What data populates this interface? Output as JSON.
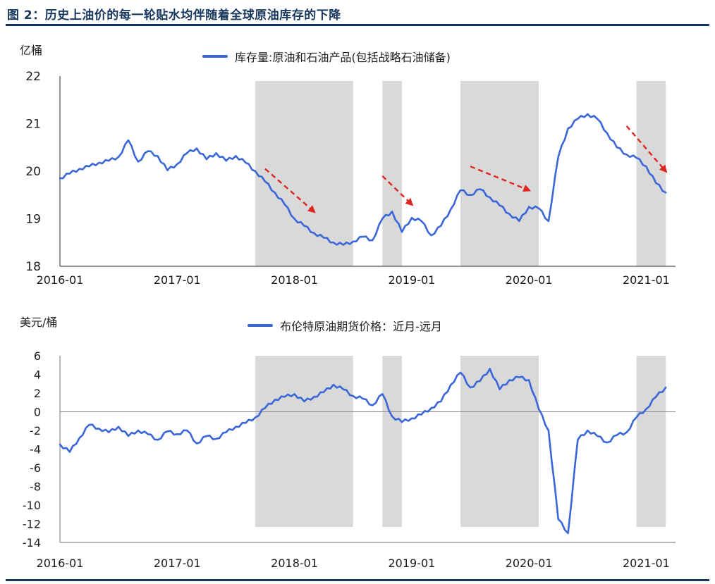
{
  "header": {
    "title": "图 2：历史上油价的每一轮贴水均伴随着全球原油库存的下降"
  },
  "colors": {
    "accent_navy": "#17375e",
    "line_blue": "#3a66d8",
    "band_gray": "#d9d9d9",
    "arrow_red": "#e02420",
    "zero_line_gray": "#8c8c8c",
    "axis_dark": "#4d4d4d"
  },
  "chart_data": [
    {
      "type": "line",
      "unit_label": "亿桶",
      "legend": "库存量:原油和石油产品(包括战略石油储备)",
      "ylim": [
        18,
        22
      ],
      "yticks": [
        18,
        19,
        20,
        21,
        22
      ],
      "xticks": [
        "2016-01",
        "2017-01",
        "2018-01",
        "2019-01",
        "2020-01",
        "2021-01"
      ],
      "grid": false,
      "legend_position": "top-center",
      "x": [
        "2016-01",
        "2016-02",
        "2016-03",
        "2016-04",
        "2016-05",
        "2016-06",
        "2016-07",
        "2016-08",
        "2016-09",
        "2016-10",
        "2016-11",
        "2016-12",
        "2017-01",
        "2017-02",
        "2017-03",
        "2017-04",
        "2017-05",
        "2017-06",
        "2017-07",
        "2017-08",
        "2017-09",
        "2017-10",
        "2017-11",
        "2017-12",
        "2018-01",
        "2018-02",
        "2018-03",
        "2018-04",
        "2018-05",
        "2018-06",
        "2018-07",
        "2018-08",
        "2018-09",
        "2018-10",
        "2018-11",
        "2018-12",
        "2019-01",
        "2019-02",
        "2019-03",
        "2019-04",
        "2019-05",
        "2019-06",
        "2019-07",
        "2019-08",
        "2019-09",
        "2019-10",
        "2019-11",
        "2019-12",
        "2020-01",
        "2020-02",
        "2020-03",
        "2020-04",
        "2020-05",
        "2020-06",
        "2020-07",
        "2020-08",
        "2020-09",
        "2020-10",
        "2020-11",
        "2020-12",
        "2021-01",
        "2021-02",
        "2021-03"
      ],
      "series": [
        {
          "name": "库存量:原油和石油产品(包括战略石油储备)",
          "values": [
            19.85,
            19.95,
            20.05,
            20.1,
            20.18,
            20.22,
            20.3,
            20.65,
            20.2,
            20.42,
            20.32,
            20.02,
            20.15,
            20.38,
            20.48,
            20.25,
            20.38,
            20.22,
            20.32,
            20.18,
            20.0,
            19.78,
            19.55,
            19.3,
            19.0,
            18.85,
            18.7,
            18.6,
            18.5,
            18.45,
            18.52,
            18.62,
            18.55,
            19.0,
            19.15,
            18.72,
            19.02,
            18.95,
            18.65,
            18.85,
            19.2,
            19.6,
            19.5,
            19.62,
            19.45,
            19.28,
            19.1,
            18.95,
            19.25,
            19.22,
            18.95,
            20.3,
            20.9,
            21.1,
            21.2,
            21.1,
            20.8,
            20.5,
            20.35,
            20.28,
            20.1,
            19.75,
            19.55
          ]
        }
      ],
      "bands": [
        [
          "2017-09",
          "2018-07"
        ],
        [
          "2018-10",
          "2018-12"
        ],
        [
          "2019-06",
          "2020-02"
        ],
        [
          "2020-12",
          "2021-03"
        ]
      ],
      "arrows": [
        {
          "from": [
            "2017-10",
            20.05
          ],
          "to": [
            "2018-03",
            19.15
          ]
        },
        {
          "from": [
            "2018-10",
            19.9
          ],
          "to": [
            "2019-01",
            19.3
          ]
        },
        {
          "from": [
            "2019-07",
            20.1
          ],
          "to": [
            "2020-01",
            19.6
          ]
        },
        {
          "from": [
            "2020-11",
            20.95
          ],
          "to": [
            "2021-03",
            20.0
          ]
        }
      ]
    },
    {
      "type": "line",
      "unit_label": "美元/桶",
      "legend": "布伦特原油期货价格：近月-远月",
      "ylim": [
        -14,
        6
      ],
      "yticks": [
        6,
        4,
        2,
        0,
        -2,
        -4,
        -6,
        -8,
        -10,
        -12,
        -14
      ],
      "xticks": [
        "2016-01",
        "2017-01",
        "2018-01",
        "2019-01",
        "2020-01",
        "2021-01"
      ],
      "grid": false,
      "zero_line": true,
      "legend_position": "top-center",
      "x": [
        "2016-01",
        "2016-02",
        "2016-03",
        "2016-04",
        "2016-05",
        "2016-06",
        "2016-07",
        "2016-08",
        "2016-09",
        "2016-10",
        "2016-11",
        "2016-12",
        "2017-01",
        "2017-02",
        "2017-03",
        "2017-04",
        "2017-05",
        "2017-06",
        "2017-07",
        "2017-08",
        "2017-09",
        "2017-10",
        "2017-11",
        "2017-12",
        "2018-01",
        "2018-02",
        "2018-03",
        "2018-04",
        "2018-05",
        "2018-06",
        "2018-07",
        "2018-08",
        "2018-09",
        "2018-10",
        "2018-11",
        "2018-12",
        "2019-01",
        "2019-02",
        "2019-03",
        "2019-04",
        "2019-05",
        "2019-06",
        "2019-07",
        "2019-08",
        "2019-09",
        "2019-10",
        "2019-11",
        "2019-12",
        "2020-01",
        "2020-02",
        "2020-03",
        "2020-04",
        "2020-05",
        "2020-06",
        "2020-07",
        "2020-08",
        "2020-09",
        "2020-10",
        "2020-11",
        "2020-12",
        "2021-01",
        "2021-02",
        "2021-03"
      ],
      "series": [
        {
          "name": "布伦特原油期货价格：近月-远月",
          "values": [
            -3.5,
            -4.3,
            -2.8,
            -1.4,
            -1.8,
            -2.2,
            -1.6,
            -2.6,
            -2.0,
            -2.4,
            -3.0,
            -2.1,
            -2.4,
            -2.0,
            -3.4,
            -2.6,
            -2.9,
            -2.2,
            -1.6,
            -1.2,
            -0.6,
            0.4,
            1.3,
            1.6,
            1.9,
            1.1,
            1.6,
            2.1,
            2.9,
            2.4,
            1.7,
            1.4,
            0.7,
            1.9,
            -0.5,
            -1.1,
            -0.7,
            -0.3,
            0.4,
            1.1,
            2.9,
            4.2,
            2.6,
            3.3,
            4.6,
            2.4,
            3.4,
            3.7,
            3.4,
            0.3,
            -2.0,
            -11.5,
            -13.0,
            -3.0,
            -2.0,
            -2.6,
            -3.3,
            -2.5,
            -2.2,
            -0.6,
            0.3,
            1.6,
            2.6
          ]
        }
      ],
      "bands": [
        [
          "2017-09",
          "2018-07"
        ],
        [
          "2018-10",
          "2018-12"
        ],
        [
          "2019-06",
          "2020-02"
        ],
        [
          "2020-12",
          "2021-03"
        ]
      ]
    }
  ]
}
